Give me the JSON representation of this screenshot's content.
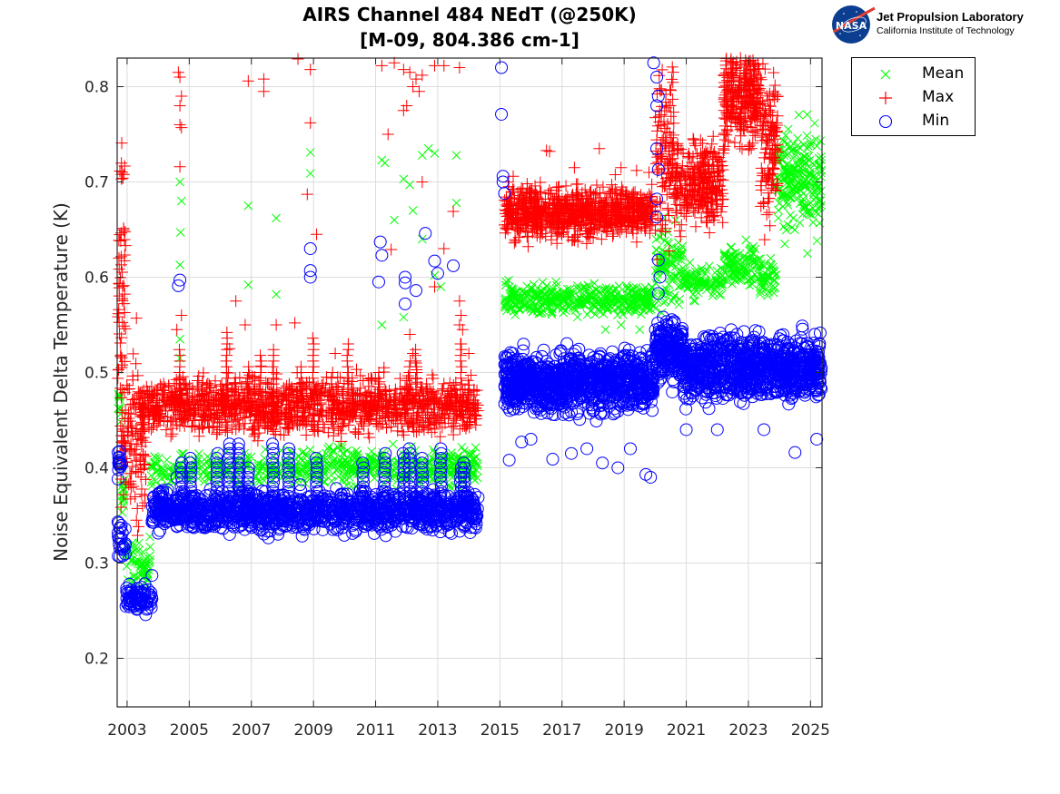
{
  "header": {
    "title_line1": "AIRS Channel 484 NEdT (@250K)",
    "title_line2": "[M-09, 804.386 cm-1]",
    "logo": {
      "icon": "nasa-meatball-icon",
      "badge_text": "NASA",
      "org_name": "Jet Propulsion Laboratory",
      "org_sub": "California Institute of Technology"
    }
  },
  "chart_data": {
    "type": "scatter",
    "title": "AIRS Channel 484 NEdT (@250K) [M-09, 804.386 cm-1]",
    "xlabel": "",
    "ylabel": "Noise Equivalent Delta Temperature (K)",
    "xlim": [
      2002.68,
      2025.37
    ],
    "ylim": [
      0.149,
      0.83
    ],
    "xticks": [
      2003,
      2005,
      2007,
      2009,
      2011,
      2013,
      2015,
      2017,
      2019,
      2021,
      2023,
      2025
    ],
    "xtick_labels": [
      "2003",
      "2005",
      "2007",
      "2009",
      "2011",
      "2013",
      "2015",
      "2017",
      "2019",
      "2021",
      "2023",
      "2025"
    ],
    "yticks": [
      0.2,
      0.3,
      0.4,
      0.5,
      0.6,
      0.7,
      0.8
    ],
    "ytick_labels": [
      "0.2",
      "0.3",
      "0.4",
      "0.5",
      "0.6",
      "0.7",
      "0.8"
    ],
    "grid": true,
    "legend_position": "outside-top-right",
    "series": [
      {
        "name": "Mean",
        "marker": "x",
        "color": "#00ff00",
        "segments": [
          {
            "x": [
              2002.7,
              2002.8
            ],
            "y_center": 0.465,
            "y_spread": 0.01,
            "n": 12
          },
          {
            "x": [
              2002.8,
              2002.95
            ],
            "y_center": 0.372,
            "y_spread": 0.012,
            "n": 15
          },
          {
            "x": [
              2002.95,
              2003.75
            ],
            "y_center": 0.3,
            "y_spread": 0.012,
            "n": 60
          },
          {
            "x": [
              2003.75,
              2014.3
            ],
            "y_center": 0.398,
            "y_spread": 0.008,
            "n": 500
          },
          {
            "x": [
              2008.5,
              2014.3
            ],
            "y_center": 0.41,
            "y_spread": 0.006,
            "n": 120
          },
          {
            "x": [
              2015.15,
              2019.95
            ],
            "y_center": 0.577,
            "y_spread": 0.008,
            "n": 400
          },
          {
            "x": [
              2020.0,
              2020.9
            ],
            "y_center": 0.61,
            "y_spread": 0.018,
            "n": 100
          },
          {
            "x": [
              2020.9,
              2022.2
            ],
            "y_center": 0.595,
            "y_spread": 0.008,
            "n": 100
          },
          {
            "x": [
              2022.2,
              2023.3
            ],
            "y_center": 0.615,
            "y_spread": 0.01,
            "n": 100
          },
          {
            "x": [
              2023.3,
              2023.9
            ],
            "y_center": 0.6,
            "y_spread": 0.01,
            "n": 50
          },
          {
            "x": [
              2023.9,
              2025.35
            ],
            "y_center": 0.7,
            "y_spread": 0.025,
            "n": 220
          }
        ],
        "outliers": [
          [
            2004.7,
            0.7
          ],
          [
            2004.75,
            0.68
          ],
          [
            2004.72,
            0.647
          ],
          [
            2004.7,
            0.613
          ],
          [
            2004.7,
            0.535
          ],
          [
            2004.7,
            0.515
          ],
          [
            2006.9,
            0.675
          ],
          [
            2006.9,
            0.592
          ],
          [
            2007.8,
            0.662
          ],
          [
            2007.8,
            0.582
          ],
          [
            2008.9,
            0.731
          ],
          [
            2008.9,
            0.709
          ],
          [
            2011.2,
            0.723
          ],
          [
            2011.3,
            0.72
          ],
          [
            2011.9,
            0.703
          ],
          [
            2012.1,
            0.697
          ],
          [
            2012.5,
            0.728
          ],
          [
            2012.7,
            0.735
          ],
          [
            2012.9,
            0.73
          ],
          [
            2013.6,
            0.728
          ],
          [
            2013.6,
            0.678
          ],
          [
            2012.2,
            0.67
          ],
          [
            2011.6,
            0.66
          ],
          [
            2012.5,
            0.64
          ],
          [
            2011.2,
            0.55
          ],
          [
            2011.9,
            0.558
          ],
          [
            2012.9,
            0.602
          ],
          [
            2013.1,
            0.59
          ],
          [
            2018.4,
            0.545
          ],
          [
            2018.9,
            0.55
          ],
          [
            2019.5,
            0.545
          ],
          [
            2024.9,
            0.625
          ]
        ]
      },
      {
        "name": "Max",
        "marker": "+",
        "color": "#ff0000",
        "segments": [
          {
            "x": [
              2002.7,
              2002.95
            ],
            "y_center": 0.6,
            "y_spread": 0.07,
            "n": 60
          },
          {
            "x": [
              2002.8,
              2003.6
            ],
            "y_center": 0.43,
            "y_spread": 0.04,
            "n": 120
          },
          {
            "x": [
              2003.4,
              2014.3
            ],
            "y_center": 0.465,
            "y_spread": 0.014,
            "n": 1400
          },
          {
            "x": [
              2015.15,
              2019.95
            ],
            "y_center": 0.668,
            "y_spread": 0.013,
            "n": 900
          },
          {
            "x": [
              2020.0,
              2020.6
            ],
            "y_center": 0.74,
            "y_spread": 0.05,
            "n": 120
          },
          {
            "x": [
              2020.6,
              2022.2
            ],
            "y_center": 0.7,
            "y_spread": 0.022,
            "n": 300
          },
          {
            "x": [
              2022.2,
              2023.4
            ],
            "y_center": 0.79,
            "y_spread": 0.025,
            "n": 300
          },
          {
            "x": [
              2023.4,
              2023.95
            ],
            "y_center": 0.74,
            "y_spread": 0.04,
            "n": 120
          }
        ],
        "outliers": [
          [
            2004.65,
            0.815
          ],
          [
            2004.7,
            0.81
          ],
          [
            2004.75,
            0.79
          ],
          [
            2004.7,
            0.78
          ],
          [
            2004.7,
            0.76
          ],
          [
            2004.75,
            0.757
          ],
          [
            2004.7,
            0.716
          ],
          [
            2004.6,
            0.545
          ],
          [
            2004.75,
            0.56
          ],
          [
            2006.9,
            0.806
          ],
          [
            2007.4,
            0.808
          ],
          [
            2007.4,
            0.795
          ],
          [
            2008.5,
            0.829
          ],
          [
            2008.9,
            0.818
          ],
          [
            2008.9,
            0.762
          ],
          [
            2008.8,
            0.687
          ],
          [
            2009.1,
            0.645
          ],
          [
            2006.5,
            0.575
          ],
          [
            2006.3,
            0.525
          ],
          [
            2006.8,
            0.55
          ],
          [
            2007.8,
            0.55
          ],
          [
            2008.4,
            0.552
          ],
          [
            2009.7,
            0.52
          ],
          [
            2011.2,
            0.822
          ],
          [
            2011.6,
            0.825
          ],
          [
            2011.9,
            0.818
          ],
          [
            2012.1,
            0.815
          ],
          [
            2012.3,
            0.808
          ],
          [
            2012.5,
            0.812
          ],
          [
            2012.9,
            0.822
          ],
          [
            2013.2,
            0.822
          ],
          [
            2013.7,
            0.82
          ],
          [
            2012.0,
            0.78
          ],
          [
            2011.9,
            0.775
          ],
          [
            2012.4,
            0.795
          ],
          [
            2012.2,
            0.8
          ],
          [
            2011.4,
            0.75
          ],
          [
            2012.5,
            0.7
          ],
          [
            2013.5,
            0.669
          ],
          [
            2011.5,
            0.629
          ],
          [
            2013.2,
            0.63
          ],
          [
            2012.9,
            0.59
          ],
          [
            2013.7,
            0.575
          ],
          [
            2013.75,
            0.56
          ],
          [
            2013.7,
            0.55
          ],
          [
            2013.8,
            0.545
          ],
          [
            2013.75,
            0.53
          ],
          [
            2012.1,
            0.54
          ],
          [
            2012.2,
            0.52
          ],
          [
            2012.3,
            0.51
          ],
          [
            2014.0,
            0.52
          ],
          [
            2016.5,
            0.733
          ],
          [
            2016.6,
            0.732
          ],
          [
            2017.4,
            0.715
          ],
          [
            2018.2,
            0.735
          ],
          [
            2018.9,
            0.715
          ],
          [
            2019.4,
            0.712
          ],
          [
            2019.8,
            0.71
          ],
          [
            2003.3,
            0.557
          ],
          [
            2003.5,
            0.36
          ],
          [
            2003.3,
            0.345
          ]
        ]
      },
      {
        "name": "Min",
        "marker": "o",
        "color": "#0000ff",
        "segments": [
          {
            "x": [
              2002.7,
              2002.85
            ],
            "y_center": 0.405,
            "y_spread": 0.012,
            "n": 15
          },
          {
            "x": [
              2002.7,
              2002.95
            ],
            "y_center": 0.325,
            "y_spread": 0.012,
            "n": 25
          },
          {
            "x": [
              2002.95,
              2003.8
            ],
            "y_center": 0.262,
            "y_spread": 0.007,
            "n": 80
          },
          {
            "x": [
              2003.8,
              2014.3
            ],
            "y_center": 0.355,
            "y_spread": 0.01,
            "n": 1300
          },
          {
            "x": [
              2015.15,
              2019.95
            ],
            "y_center": 0.49,
            "y_spread": 0.015,
            "n": 1000
          },
          {
            "x": [
              2020.0,
              2020.9
            ],
            "y_center": 0.525,
            "y_spread": 0.015,
            "n": 200
          },
          {
            "x": [
              2020.9,
              2025.35
            ],
            "y_center": 0.505,
            "y_spread": 0.016,
            "n": 900
          }
        ],
        "outliers": [
          [
            2004.7,
            0.597
          ],
          [
            2004.65,
            0.591
          ],
          [
            2008.9,
            0.63
          ],
          [
            2008.9,
            0.607
          ],
          [
            2008.9,
            0.6
          ],
          [
            2011.15,
            0.637
          ],
          [
            2011.2,
            0.623
          ],
          [
            2011.1,
            0.595
          ],
          [
            2011.95,
            0.6
          ],
          [
            2011.95,
            0.594
          ],
          [
            2011.95,
            0.572
          ],
          [
            2012.3,
            0.586
          ],
          [
            2012.6,
            0.646
          ],
          [
            2012.9,
            0.617
          ],
          [
            2013.0,
            0.604
          ],
          [
            2013.5,
            0.612
          ],
          [
            2015.05,
            0.82
          ],
          [
            2015.05,
            0.771
          ],
          [
            2015.1,
            0.706
          ],
          [
            2015.1,
            0.7
          ],
          [
            2015.15,
            0.688
          ],
          [
            2019.95,
            0.825
          ],
          [
            2020.05,
            0.81
          ],
          [
            2020.1,
            0.79
          ],
          [
            2020.05,
            0.78
          ],
          [
            2020.05,
            0.735
          ],
          [
            2020.1,
            0.713
          ],
          [
            2020.05,
            0.682
          ],
          [
            2020.05,
            0.663
          ],
          [
            2020.1,
            0.618
          ],
          [
            2020.15,
            0.6
          ],
          [
            2020.1,
            0.583
          ],
          [
            2015.3,
            0.408
          ],
          [
            2015.7,
            0.427
          ],
          [
            2016.0,
            0.43
          ],
          [
            2016.7,
            0.409
          ],
          [
            2017.3,
            0.415
          ],
          [
            2017.8,
            0.42
          ],
          [
            2018.3,
            0.405
          ],
          [
            2018.8,
            0.4
          ],
          [
            2019.2,
            0.42
          ],
          [
            2019.7,
            0.393
          ],
          [
            2019.85,
            0.39
          ],
          [
            2004.6,
            0.39
          ],
          [
            2006.3,
            0.33
          ],
          [
            2003.8,
            0.287
          ],
          [
            2024.5,
            0.416
          ],
          [
            2025.2,
            0.43
          ],
          [
            2021.0,
            0.44
          ],
          [
            2022.0,
            0.44
          ],
          [
            2023.5,
            0.44
          ]
        ]
      }
    ],
    "vertical_spikes": {
      "description": "Short-lived vertical clusters of Max markers above the main band and Min markers above the Min band",
      "max_spike_years": [
        2004.7,
        2005.4,
        2006.2,
        2006.5,
        2006.9,
        2007.3,
        2007.7,
        2008.2,
        2008.6,
        2009.0,
        2009.6,
        2010.1,
        2011.1,
        2012.1,
        2012.3,
        2013.75
      ],
      "min_spike_years": [
        2004.75,
        2005.05,
        2005.9,
        2006.3,
        2006.6,
        2006.9,
        2007.7,
        2008.2,
        2009.1,
        2010.6,
        2011.3,
        2011.9,
        2012.1,
        2012.5,
        2013.1,
        2013.75,
        2013.85
      ]
    }
  },
  "legend": {
    "items": [
      {
        "label": "Mean",
        "marker": "x",
        "color": "#00ff00"
      },
      {
        "label": "Max",
        "marker": "+",
        "color": "#ff0000"
      },
      {
        "label": "Min",
        "marker": "o",
        "color": "#0000ff"
      }
    ]
  }
}
